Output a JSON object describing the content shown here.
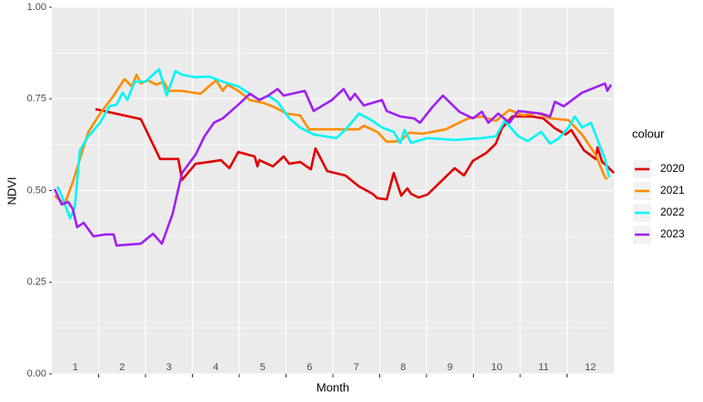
{
  "chart_data": {
    "type": "line",
    "xlabel": "Month",
    "ylabel": "NDVI",
    "legend_title": "colour",
    "legend": "right",
    "grid": true,
    "xlim": [
      0.5,
      12.5
    ],
    "xticks": [
      1,
      2,
      3,
      4,
      5,
      6,
      7,
      8,
      9,
      10,
      11,
      12
    ],
    "ylim": [
      0,
      1
    ],
    "yticks": [
      {
        "value": 0,
        "label": "0.00"
      },
      {
        "value": 0.25,
        "label": "0.25"
      },
      {
        "value": 0.5,
        "label": "0.50"
      },
      {
        "value": 0.75,
        "label": "0.75"
      },
      {
        "value": 1,
        "label": "1.00"
      }
    ],
    "series": [
      {
        "name": "2020",
        "color": "#e00000",
        "x": [
          1.43,
          2.4,
          2.81,
          3.2,
          3.28,
          3.57,
          3.86,
          4.11,
          4.29,
          4.48,
          4.83,
          4.89,
          4.93,
          5.22,
          5.45,
          5.57,
          5.8,
          6.03,
          6.13,
          6.38,
          6.77,
          7.06,
          7.35,
          7.45,
          7.65,
          7.8,
          7.96,
          8.09,
          8.17,
          8.33,
          8.52,
          9.1,
          9.3,
          9.49,
          9.78,
          9.98,
          10.11,
          10.33,
          10.75,
          10.99,
          11.24,
          11.47,
          11.59,
          11.86,
          12.11,
          12.15,
          12.25,
          12.36,
          12.5
        ],
        "values": [
          0.722,
          0.695,
          0.586,
          0.586,
          0.529,
          0.573,
          0.578,
          0.583,
          0.561,
          0.605,
          0.593,
          0.566,
          0.583,
          0.566,
          0.593,
          0.573,
          0.578,
          0.558,
          0.615,
          0.553,
          0.541,
          0.511,
          0.491,
          0.479,
          0.476,
          0.548,
          0.486,
          0.506,
          0.491,
          0.481,
          0.489,
          0.561,
          0.541,
          0.581,
          0.603,
          0.628,
          0.67,
          0.702,
          0.702,
          0.697,
          0.67,
          0.653,
          0.665,
          0.61,
          0.586,
          0.618,
          0.578,
          0.566,
          0.548
        ]
      },
      {
        "name": "2021",
        "color": "#ff8c00",
        "x": [
          0.56,
          0.77,
          0.95,
          1.1,
          1.28,
          1.53,
          1.82,
          2.05,
          2.21,
          2.31,
          2.4,
          2.54,
          2.73,
          2.89,
          2.99,
          3.28,
          3.67,
          3.9,
          4.01,
          4.15,
          4.25,
          4.48,
          4.73,
          5.02,
          5.26,
          5.51,
          5.8,
          5.99,
          6.67,
          7.06,
          7.16,
          7.45,
          7.65,
          7.94,
          8.13,
          8.42,
          8.91,
          9.39,
          9.68,
          9.98,
          10.27,
          10.56,
          10.85,
          11.14,
          11.53,
          11.82,
          12.11,
          12.31,
          12.36
        ],
        "values": [
          0.486,
          0.462,
          0.524,
          0.586,
          0.66,
          0.71,
          0.759,
          0.804,
          0.784,
          0.816,
          0.792,
          0.801,
          0.789,
          0.797,
          0.772,
          0.772,
          0.764,
          0.789,
          0.801,
          0.772,
          0.789,
          0.772,
          0.747,
          0.739,
          0.727,
          0.71,
          0.705,
          0.667,
          0.667,
          0.667,
          0.677,
          0.66,
          0.633,
          0.635,
          0.658,
          0.655,
          0.667,
          0.697,
          0.702,
          0.69,
          0.72,
          0.705,
          0.712,
          0.697,
          0.692,
          0.653,
          0.598,
          0.536,
          0.531
        ]
      },
      {
        "name": "2022",
        "color": "#00f5f5",
        "x": [
          0.62,
          0.71,
          0.89,
          0.99,
          1.1,
          1.28,
          1.53,
          1.73,
          1.88,
          2.01,
          2.11,
          2.27,
          2.5,
          2.79,
          2.95,
          3.14,
          3.28,
          3.57,
          3.86,
          4.15,
          4.48,
          4.73,
          4.93,
          5.12,
          5.32,
          5.57,
          5.8,
          6.09,
          6.58,
          6.81,
          7.06,
          7.35,
          7.55,
          7.8,
          7.94,
          8.03,
          8.17,
          8.52,
          9.1,
          9.68,
          9.98,
          10.17,
          10.46,
          10.66,
          10.95,
          11.14,
          11.33,
          11.53,
          11.67,
          11.82,
          12.01,
          12.31,
          12.4
        ],
        "values": [
          0.511,
          0.486,
          0.424,
          0.454,
          0.61,
          0.648,
          0.685,
          0.73,
          0.734,
          0.767,
          0.747,
          0.797,
          0.797,
          0.831,
          0.759,
          0.826,
          0.816,
          0.809,
          0.811,
          0.797,
          0.784,
          0.764,
          0.747,
          0.759,
          0.742,
          0.697,
          0.672,
          0.653,
          0.643,
          0.672,
          0.71,
          0.69,
          0.672,
          0.66,
          0.63,
          0.665,
          0.63,
          0.643,
          0.638,
          0.643,
          0.648,
          0.69,
          0.648,
          0.635,
          0.66,
          0.628,
          0.643,
          0.672,
          0.702,
          0.672,
          0.685,
          0.586,
          0.536
        ]
      },
      {
        "name": "2023",
        "color": "#a020f0",
        "x": [
          0.56,
          0.71,
          0.85,
          0.95,
          1.04,
          1.18,
          1.39,
          1.63,
          1.82,
          1.88,
          2.4,
          2.66,
          2.85,
          3.08,
          3.28,
          3.57,
          3.76,
          3.96,
          4.15,
          4.48,
          4.73,
          4.93,
          5.12,
          5.32,
          5.45,
          5.9,
          6.09,
          6.48,
          6.73,
          6.87,
          6.97,
          7.16,
          7.55,
          7.65,
          7.94,
          8.23,
          8.36,
          8.62,
          8.85,
          9.2,
          9.49,
          9.68,
          9.82,
          10.03,
          10.27,
          10.46,
          10.95,
          11.14,
          11.24,
          11.43,
          11.82,
          12.31,
          12.36,
          12.44
        ],
        "values": [
          0.504,
          0.462,
          0.469,
          0.449,
          0.4,
          0.412,
          0.375,
          0.38,
          0.38,
          0.35,
          0.355,
          0.382,
          0.355,
          0.437,
          0.548,
          0.598,
          0.648,
          0.685,
          0.697,
          0.734,
          0.764,
          0.747,
          0.759,
          0.777,
          0.759,
          0.772,
          0.717,
          0.747,
          0.777,
          0.747,
          0.764,
          0.732,
          0.747,
          0.717,
          0.702,
          0.697,
          0.685,
          0.727,
          0.759,
          0.715,
          0.697,
          0.715,
          0.685,
          0.71,
          0.685,
          0.717,
          0.71,
          0.702,
          0.742,
          0.73,
          0.767,
          0.792,
          0.772,
          0.789
        ]
      }
    ]
  }
}
